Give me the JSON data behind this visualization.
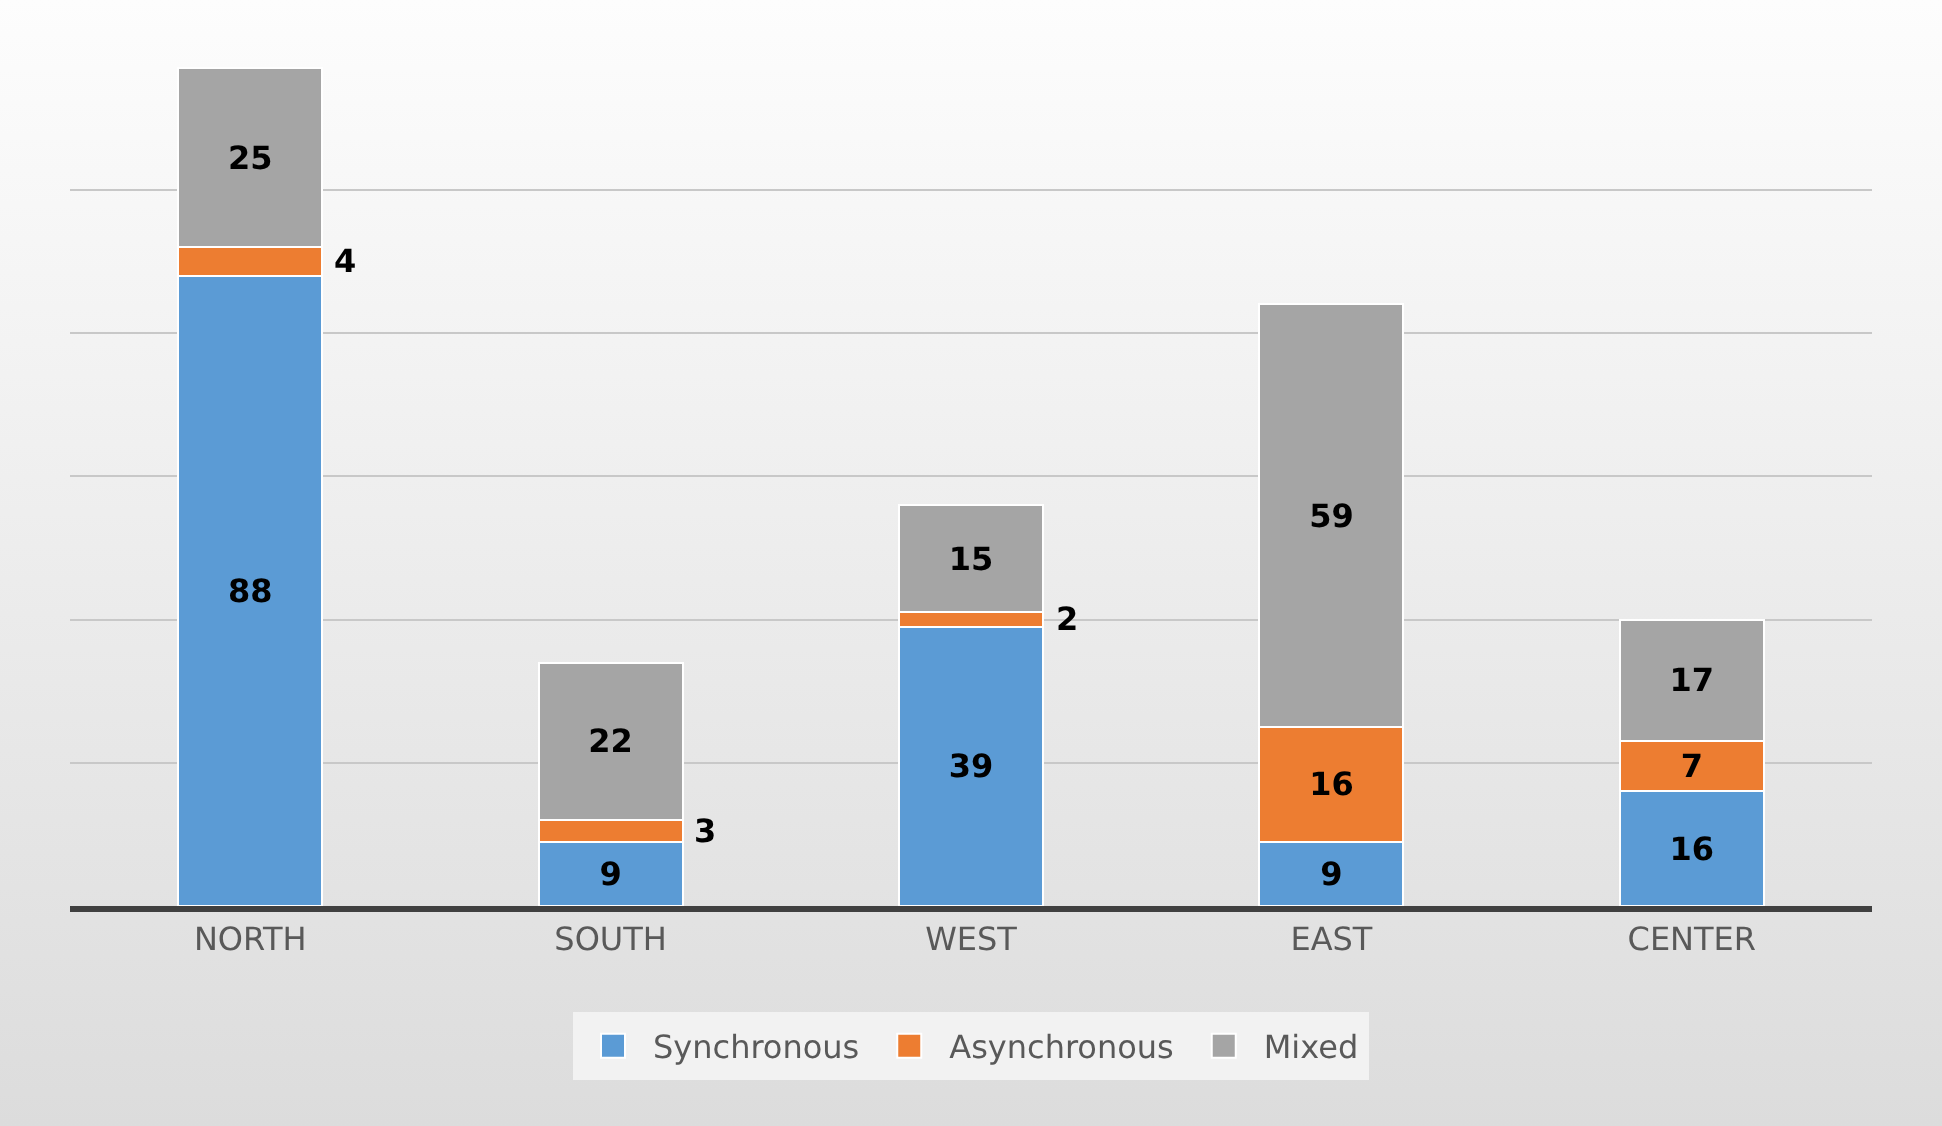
{
  "chart_data": {
    "type": "bar",
    "stacked": true,
    "categories": [
      "NORTH",
      "SOUTH",
      "WEST",
      "EAST",
      "CENTER"
    ],
    "series": [
      {
        "name": "Synchronous",
        "color": "#5b9bd5",
        "values": [
          88,
          9,
          39,
          9,
          16
        ]
      },
      {
        "name": "Asynchronous",
        "color": "#ed7d31",
        "values": [
          4,
          3,
          2,
          16,
          7
        ]
      },
      {
        "name": "Mixed",
        "color": "#a5a5a5",
        "values": [
          25,
          22,
          15,
          59,
          17
        ]
      }
    ],
    "yticks": [
      {
        "value": 0,
        "label": null
      },
      {
        "value": 20,
        "label": null
      },
      {
        "value": 40,
        "label": null
      },
      {
        "value": 60,
        "label": null
      },
      {
        "value": 80,
        "label": null
      },
      {
        "value": 100,
        "label": null
      }
    ],
    "grid": "y",
    "legend": "bottom",
    "tick_labels": "x",
    "data_labels": true
  }
}
